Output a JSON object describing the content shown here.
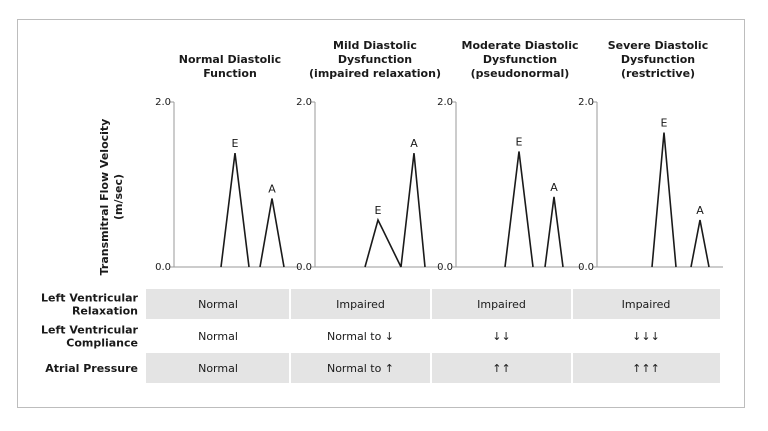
{
  "y_axis_label": "Transmitral Flow Velocity (m/sec)",
  "y_axis_label_lines": [
    "Transmitral Flow Velocity",
    "(m/sec)"
  ],
  "y_tick_max": "2.0",
  "y_tick_min": "0.0",
  "panels": [
    {
      "title_lines": [
        "Normal Diastolic",
        "Function"
      ],
      "peaks": [
        {
          "label": "E",
          "velocity": 1.38
        },
        {
          "label": "A",
          "velocity": 0.83
        }
      ]
    },
    {
      "title_lines": [
        "Mild Diastolic",
        "Dysfunction",
        "(impaired relaxation)"
      ],
      "peaks": [
        {
          "label": "E",
          "velocity": 0.57
        },
        {
          "label": "A",
          "velocity": 1.38
        }
      ]
    },
    {
      "title_lines": [
        "Moderate Diastolic",
        "Dysfunction",
        "(pseudonormal)"
      ],
      "peaks": [
        {
          "label": "E",
          "velocity": 1.4
        },
        {
          "label": "A",
          "velocity": 0.85
        }
      ]
    },
    {
      "title_lines": [
        "Severe Diastolic",
        "Dysfunction",
        "(restrictive)"
      ],
      "peaks": [
        {
          "label": "E",
          "velocity": 1.63
        },
        {
          "label": "A",
          "velocity": 0.57
        }
      ]
    }
  ],
  "table": {
    "rows": [
      {
        "label_lines": [
          "Left Ventricular",
          "Relaxation"
        ],
        "shaded": true,
        "cells": [
          "Normal",
          "Impaired",
          "Impaired",
          "Impaired"
        ]
      },
      {
        "label_lines": [
          "Left Ventricular",
          "Compliance"
        ],
        "shaded": false,
        "cells": [
          "Normal",
          "Normal to ↓",
          "↓↓",
          "↓↓↓"
        ]
      },
      {
        "label_lines": [
          "Atrial Pressure"
        ],
        "shaded": true,
        "cells": [
          "Normal",
          "Normal to ↑",
          "↑↑",
          "↑↑↑"
        ]
      }
    ]
  },
  "colors": {
    "line": "#1a1a1a",
    "axis": "#9a9a9a",
    "shade": "#e4e4e4"
  }
}
